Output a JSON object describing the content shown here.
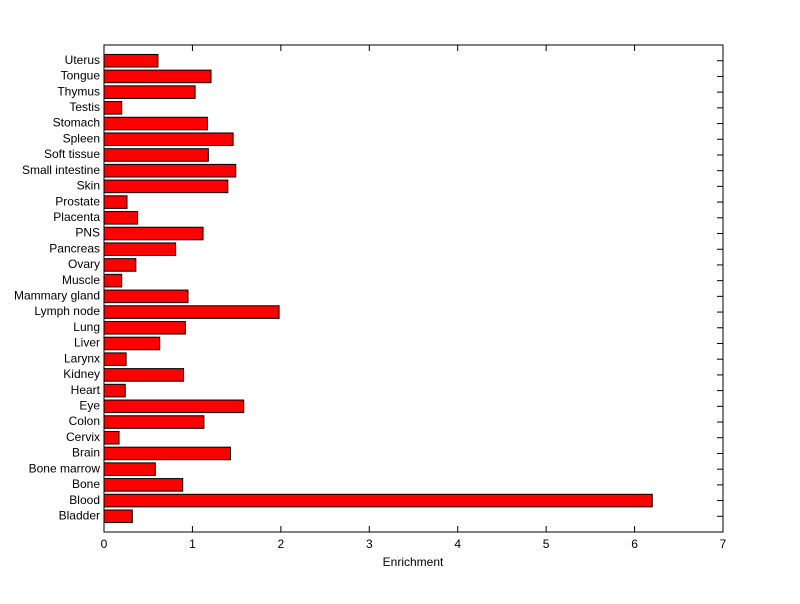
{
  "chart_data": {
    "type": "barh",
    "xlabel": "Enrichment",
    "categories": [
      "Bladder",
      "Blood",
      "Bone",
      "Bone marrow",
      "Brain",
      "Cervix",
      "Colon",
      "Eye",
      "Heart",
      "Kidney",
      "Larynx",
      "Liver",
      "Lung",
      "Lymph node",
      "Mammary gland",
      "Muscle",
      "Ovary",
      "Pancreas",
      "PNS",
      "Placenta",
      "Prostate",
      "Skin",
      "Small intestine",
      "Soft tissue",
      "Spleen",
      "Stomach",
      "Testis",
      "Thymus",
      "Tongue",
      "Uterus"
    ],
    "values": [
      0.32,
      6.2,
      0.89,
      0.58,
      1.43,
      0.17,
      1.13,
      1.58,
      0.24,
      0.9,
      0.25,
      0.63,
      0.92,
      1.98,
      0.95,
      0.2,
      0.36,
      0.81,
      1.12,
      0.38,
      0.26,
      1.4,
      1.49,
      1.18,
      1.46,
      1.17,
      0.2,
      1.03,
      1.21,
      0.61
    ],
    "color": "#ff0000",
    "xlim": [
      0,
      7
    ],
    "xticks": [
      0,
      1,
      2,
      3,
      4,
      5,
      6,
      7
    ]
  }
}
